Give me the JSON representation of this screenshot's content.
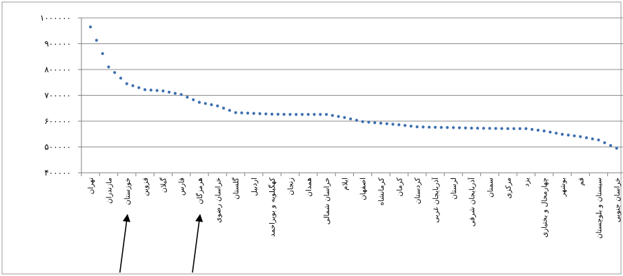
{
  "chart_data": {
    "type": "line",
    "series_style": "dotted",
    "series_color": "#3d6fb0",
    "grid": true,
    "legend": "none",
    "ylim": [
      400000,
      1000000
    ],
    "yticks": [
      400000,
      500000,
      600000,
      700000,
      800000,
      900000,
      1000000
    ],
    "ytick_labels": [
      "۴۰۰۰۰۰",
      "۵۰۰۰۰۰",
      "۶۰۰۰۰۰",
      "۷۰۰۰۰۰",
      "۸۰۰۰۰۰",
      "۹۰۰۰۰۰",
      "۱۰۰۰۰۰۰"
    ],
    "categories": [
      "تهران",
      "مازندران",
      "خوزستان",
      "قزوین",
      "گیلان",
      "فارس",
      "هرمزگان",
      "خراسان رضوی",
      "گلستان",
      "اردبیل",
      "کهگیلویه و بویراحمد",
      "زنجان",
      "همدان",
      "خراسان شمالی",
      "ایلام",
      "اصفهان",
      "کرمانشاه",
      "کرمان",
      "کردستان",
      "آذربایجان غربی",
      "لرستان",
      "آذربایجان شرقی",
      "سمنان",
      "مرکزی",
      "یزد",
      "چهارمحال و بختیاری",
      "بوشهر",
      "قم",
      "سیستان و بلوچستان",
      "خراسان جنوبی"
    ],
    "values": [
      965000,
      810000,
      745000,
      722000,
      717000,
      703000,
      673000,
      659000,
      633000,
      630000,
      627000,
      626000,
      626000,
      626000,
      614000,
      598000,
      592000,
      586000,
      578000,
      576000,
      575000,
      573000,
      572000,
      571000,
      571000,
      562000,
      549000,
      540000,
      527000,
      495000
    ],
    "annotations": [
      {
        "type": "arrow",
        "target_category": "خوزستان"
      },
      {
        "type": "arrow",
        "target_category": "هرمزگان"
      }
    ]
  }
}
